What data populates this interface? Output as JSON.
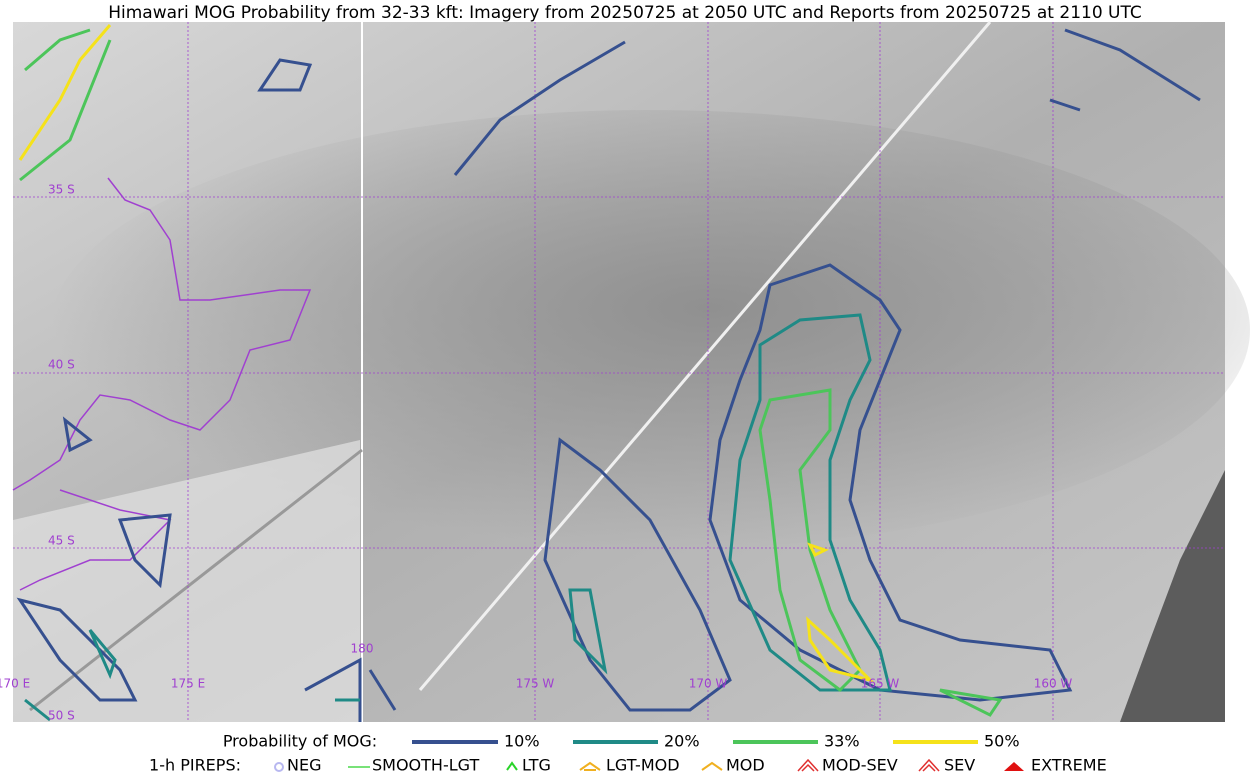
{
  "header": {
    "title": "Himawari MOG Probability from 32-33 kft: Imagery from 20250725 at 2050 UTC and Reports from 20250725 at 2110 UTC"
  },
  "map": {
    "lat_labels": [
      "35 S",
      "40 S",
      "45 S",
      "50 S"
    ],
    "lon_labels": [
      "170 E",
      "175 E",
      "180",
      "175 W",
      "170 W",
      "165 W",
      "160 W"
    ]
  },
  "legend": {
    "probability": {
      "label": "Probability of MOG:",
      "items": [
        "10%",
        "20%",
        "33%",
        "50%"
      ]
    },
    "pireps": {
      "label": "1-h PIREPS:",
      "items": [
        "NEG",
        "SMOOTH-LGT",
        "LTG",
        "LGT-MOD",
        "MOD",
        "MOD-SEV",
        "SEV",
        "EXTREME"
      ]
    }
  }
}
